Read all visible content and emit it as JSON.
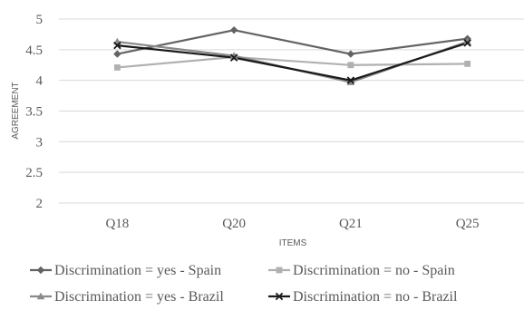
{
  "chart_data": {
    "type": "line",
    "title": "",
    "xlabel": "ITEMS",
    "ylabel": "AGREEMENT",
    "categories": [
      "Q18",
      "Q20",
      "Q21",
      "Q25"
    ],
    "ylim": [
      2,
      5
    ],
    "yticks": [
      "2",
      "2.5",
      "3",
      "3.5",
      "4",
      "4.5",
      "5"
    ],
    "grid": "horizontal",
    "legend_position": "bottom",
    "series": [
      {
        "name": "Discrimination = yes - Spain",
        "values": [
          4.43,
          4.82,
          4.43,
          4.68
        ],
        "color": "#636363",
        "marker": "diamond"
      },
      {
        "name": "Discrimination = no - Spain",
        "values": [
          4.21,
          4.38,
          4.25,
          4.27
        ],
        "color": "#b0b0b0",
        "marker": "square"
      },
      {
        "name": "Discrimination = yes - Brazil",
        "values": [
          4.63,
          4.4,
          3.97,
          4.63
        ],
        "color": "#8a8a8a",
        "marker": "triangle"
      },
      {
        "name": "Discrimination = no - Brazil",
        "values": [
          4.57,
          4.37,
          4.0,
          4.61
        ],
        "color": "#1a1a1a",
        "marker": "x"
      }
    ]
  }
}
